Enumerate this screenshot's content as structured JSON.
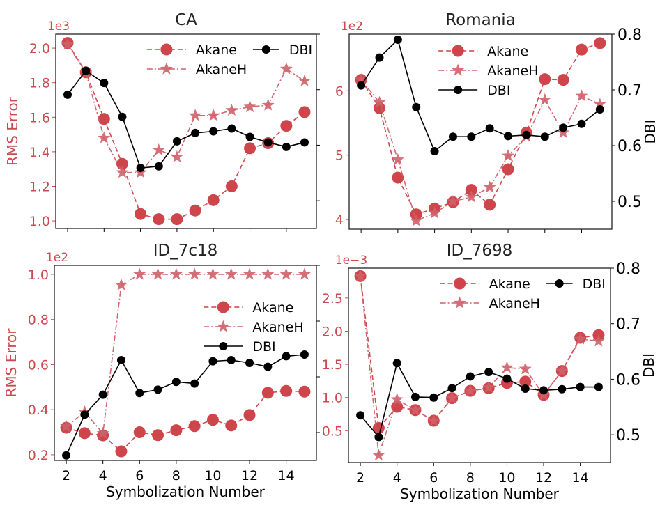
{
  "colors": {
    "akane": "#cc4046",
    "akaneh": "#d0606a",
    "dbi": "#000000",
    "left_axis": "#cc4a4f"
  },
  "chart_data": [
    {
      "type": "line",
      "title": "CA",
      "xlabel": "",
      "ylabel": "RMS Error",
      "y2label": "",
      "y_offset_label": "1e3",
      "x": [
        2,
        3,
        4,
        5,
        6,
        7,
        8,
        9,
        10,
        11,
        12,
        13,
        14,
        15
      ],
      "xticks": [
        2,
        4,
        6,
        8,
        10,
        12,
        14
      ],
      "xtick_labels_visible": false,
      "ylim": [
        0.956,
        2.081
      ],
      "yticks": [
        1.0,
        1.2,
        1.4,
        1.6,
        1.8,
        2.0
      ],
      "ytick_labels": [
        "1.0",
        "1.2",
        "1.4",
        "1.6",
        "1.8",
        "2.0"
      ],
      "y2lim": [
        0.45,
        0.8
      ],
      "y2ticks": [
        0.5,
        0.6,
        0.7,
        0.8
      ],
      "y2tick_labels": [],
      "legend": {
        "placement": "top-right",
        "columns": 2,
        "order": [
          "Akane",
          "DBI",
          "AkaneH"
        ]
      },
      "series": [
        {
          "name": "Akane",
          "axis": "left",
          "style": "dashed",
          "marker": "circle",
          "values": [
            2.03,
            1.86,
            1.59,
            1.33,
            1.04,
            1.01,
            1.01,
            1.06,
            1.12,
            1.2,
            1.42,
            1.45,
            1.55,
            1.63
          ]
        },
        {
          "name": "AkaneH",
          "axis": "left",
          "style": "dashdot",
          "marker": "star",
          "values": [
            2.02,
            1.86,
            1.48,
            1.28,
            1.28,
            1.41,
            1.37,
            1.61,
            1.61,
            1.64,
            1.66,
            1.67,
            1.88,
            1.81
          ]
        },
        {
          "name": "DBI",
          "axis": "right",
          "style": "solid",
          "marker": "circle-small",
          "values": [
            0.691,
            0.734,
            0.712,
            0.651,
            0.559,
            0.562,
            0.607,
            0.622,
            0.625,
            0.63,
            0.615,
            0.605,
            0.597,
            0.605
          ]
        }
      ]
    },
    {
      "type": "line",
      "title": "Romania",
      "xlabel": "",
      "ylabel": "",
      "y2label": "DBI",
      "y_offset_label": "1e2",
      "x": [
        2,
        3,
        4,
        5,
        6,
        7,
        8,
        9,
        10,
        11,
        12,
        13,
        14,
        15
      ],
      "xticks": [
        2,
        4,
        6,
        8,
        10,
        12,
        14
      ],
      "xtick_labels_visible": false,
      "ylim": [
        3.85,
        6.88
      ],
      "yticks": [
        4,
        5,
        6
      ],
      "ytick_labels": [
        "4",
        "5",
        "6"
      ],
      "y2lim": [
        0.45,
        0.8
      ],
      "y2ticks": [
        0.5,
        0.6,
        0.7,
        0.8
      ],
      "y2tick_labels": [
        "0.5",
        "0.6",
        "0.7",
        "0.8"
      ],
      "legend": {
        "placement": "top-center",
        "columns": 1,
        "order": [
          "Akane",
          "AkaneH",
          "DBI"
        ]
      },
      "series": [
        {
          "name": "Akane",
          "axis": "left",
          "style": "dashed",
          "marker": "circle",
          "values": [
            6.17,
            5.73,
            4.65,
            4.08,
            4.17,
            4.27,
            4.46,
            4.23,
            4.78,
            5.35,
            6.18,
            6.17,
            6.64,
            6.74
          ]
        },
        {
          "name": "AkaneH",
          "axis": "left",
          "style": "dashdot",
          "marker": "star",
          "values": [
            6.17,
            5.82,
            4.93,
            3.98,
            4.1,
            4.28,
            4.35,
            4.5,
            4.99,
            5.29,
            5.86,
            5.35,
            5.92,
            5.79
          ]
        },
        {
          "name": "DBI",
          "axis": "right",
          "style": "solid",
          "marker": "circle-small",
          "values": [
            0.708,
            0.758,
            0.79,
            0.669,
            0.59,
            0.616,
            0.616,
            0.631,
            0.617,
            0.619,
            0.616,
            0.632,
            0.639,
            0.665
          ]
        }
      ]
    },
    {
      "type": "line",
      "title": "ID_7c18",
      "xlabel": "Symbolization Number",
      "ylabel": "RMS Error",
      "y2label": "",
      "y_offset_label": "1e2",
      "x": [
        2,
        3,
        4,
        5,
        6,
        7,
        8,
        9,
        10,
        11,
        12,
        13,
        14,
        15
      ],
      "xticks": [
        2,
        4,
        6,
        8,
        10,
        12,
        14
      ],
      "xtick_labels_visible": true,
      "ylim": [
        0.175,
        1.04
      ],
      "yticks": [
        0.2,
        0.4,
        0.6,
        0.8,
        1.0
      ],
      "ytick_labels": [
        "0.2",
        "0.4",
        "0.6",
        "0.8",
        "1.0"
      ],
      "y2lim": [
        0.45,
        0.8
      ],
      "y2ticks": [
        0.5,
        0.6,
        0.7,
        0.8
      ],
      "y2tick_labels": [],
      "legend": {
        "placement": "center-right",
        "columns": 1,
        "order": [
          "Akane",
          "AkaneH",
          "DBI"
        ]
      },
      "series": [
        {
          "name": "Akane",
          "axis": "left",
          "style": "dashed",
          "marker": "circle",
          "values": [
            0.32,
            0.296,
            0.286,
            0.215,
            0.3,
            0.287,
            0.309,
            0.327,
            0.355,
            0.33,
            0.376,
            0.475,
            0.483,
            0.48
          ]
        },
        {
          "name": "AkaneH",
          "axis": "left",
          "style": "dashdot",
          "marker": "star",
          "values": [
            0.325,
            0.39,
            0.295,
            0.953,
            1.0,
            1.0,
            1.0,
            1.0,
            1.0,
            1.0,
            1.0,
            1.0,
            1.0,
            1.0
          ]
        },
        {
          "name": "DBI",
          "axis": "right",
          "style": "solid",
          "marker": "circle-small",
          "values": [
            0.459,
            0.532,
            0.568,
            0.63,
            0.571,
            0.577,
            0.591,
            0.588,
            0.628,
            0.63,
            0.625,
            0.618,
            0.637,
            0.64
          ]
        }
      ]
    },
    {
      "type": "line",
      "title": "ID_7698",
      "xlabel": "Symbolization Number",
      "ylabel": "",
      "y2label": "DBI",
      "y_offset_label": "1e−3",
      "x": [
        2,
        3,
        4,
        5,
        6,
        7,
        8,
        9,
        10,
        11,
        12,
        13,
        14,
        15
      ],
      "xticks": [
        2,
        4,
        6,
        8,
        10,
        12,
        14
      ],
      "xtick_labels_visible": true,
      "ylim": [
        0.02,
        2.95
      ],
      "yticks": [
        0.5,
        1.0,
        1.5,
        2.0,
        2.5
      ],
      "ytick_labels": [
        "0.5",
        "1.0",
        "1.5",
        "2.0",
        "2.5"
      ],
      "y2lim": [
        0.45,
        0.8
      ],
      "y2ticks": [
        0.5,
        0.6,
        0.7,
        0.8
      ],
      "y2tick_labels": [
        "0.5",
        "0.6",
        "0.7",
        "0.8"
      ],
      "legend": {
        "placement": "top-right",
        "columns": 2,
        "order": [
          "Akane",
          "DBI",
          "AkaneH"
        ]
      },
      "series": [
        {
          "name": "Akane",
          "axis": "left",
          "style": "dashed",
          "marker": "circle",
          "values": [
            2.83,
            0.54,
            0.86,
            0.81,
            0.65,
            0.99,
            1.1,
            1.14,
            1.22,
            1.24,
            1.04,
            1.4,
            1.9,
            1.94
          ]
        },
        {
          "name": "AkaneH",
          "axis": "left",
          "style": "dashdot",
          "marker": "star",
          "values": [
            2.83,
            0.13,
            0.97,
            0.81,
            0.65,
            0.99,
            1.1,
            1.15,
            1.45,
            1.43,
            1.04,
            1.4,
            1.88,
            1.85
          ]
        },
        {
          "name": "DBI",
          "axis": "right",
          "style": "solid",
          "marker": "circle-small",
          "values": [
            0.535,
            0.496,
            0.629,
            0.568,
            0.567,
            0.584,
            0.605,
            0.613,
            0.601,
            0.583,
            0.58,
            0.582,
            0.586,
            0.586
          ]
        }
      ]
    }
  ]
}
